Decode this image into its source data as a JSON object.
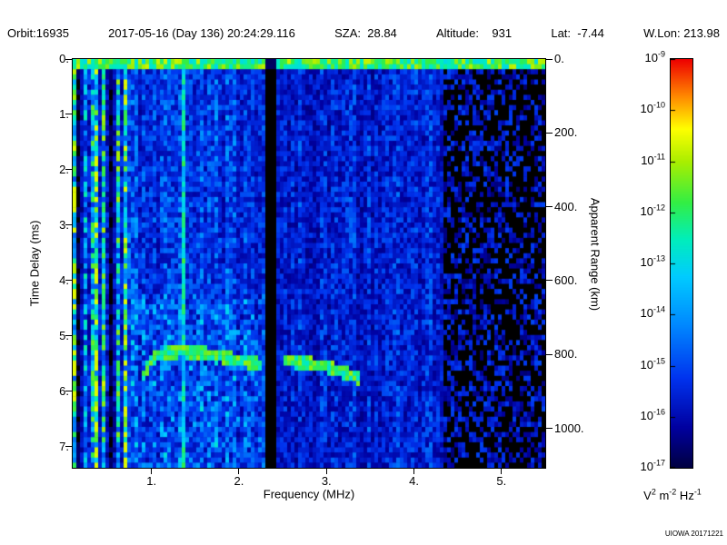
{
  "header": {
    "parts": [
      "Orbit:16935",
      "2017-05-16 (Day 136) 20:24:29.116",
      "SZA:  28.84",
      "Altitude:    931",
      "Lat:  -7.44",
      "W.Lon: 213.98"
    ]
  },
  "footer": {
    "watermark": "UIOWA 20171221"
  },
  "chart_data": {
    "type": "heatmap",
    "title": "",
    "xlabel": "Frequency (MHz)",
    "ylabel": "Time Delay (ms)",
    "y2label": "Apparent Range (km)",
    "xlim": [
      0.1,
      5.5
    ],
    "ylim_ms": [
      0,
      7.38
    ],
    "y_inverted": true,
    "xticks": {
      "values": [
        1,
        2,
        3,
        4,
        5
      ],
      "labels": [
        "1.",
        "2.",
        "3.",
        "4.",
        "5."
      ]
    },
    "yticks": {
      "values": [
        0,
        1,
        2,
        3,
        4,
        5,
        6,
        7
      ],
      "labels": [
        "0.",
        "1.",
        "2.",
        "3.",
        "4.",
        "5.",
        "6.",
        "7."
      ]
    },
    "y2ticks": {
      "values_km": [
        0,
        200,
        400,
        600,
        800,
        1000
      ],
      "labels": [
        "0.",
        "200.",
        "400.",
        "600.",
        "800.",
        "1000."
      ],
      "km_per_ms": 150
    },
    "colorbar": {
      "min": "1e-17",
      "max": "1e-9",
      "tick_exponents": [
        -9,
        -10,
        -11,
        -12,
        -13,
        -14,
        -15,
        -16,
        -17
      ],
      "unit_parts": [
        {
          "base": "V",
          "exp": "2"
        },
        {
          "base": "m",
          "exp": "-2"
        },
        {
          "base": "Hz",
          "exp": "-1"
        }
      ],
      "colormap_stops": [
        {
          "t": 0.0,
          "hex": "#000040"
        },
        {
          "t": 0.1,
          "hex": "#0000a0"
        },
        {
          "t": 0.22,
          "hex": "#0033ee"
        },
        {
          "t": 0.35,
          "hex": "#0088ff"
        },
        {
          "t": 0.47,
          "hex": "#00ccff"
        },
        {
          "t": 0.56,
          "hex": "#00eebb"
        },
        {
          "t": 0.65,
          "hex": "#33ee44"
        },
        {
          "t": 0.75,
          "hex": "#aaee00"
        },
        {
          "t": 0.83,
          "hex": "#ffff00"
        },
        {
          "t": 0.91,
          "hex": "#ff8800"
        },
        {
          "t": 1.0,
          "hex": "#ee0000"
        }
      ]
    },
    "spectrogram": {
      "seed": 16935,
      "grid": {
        "cols": 130,
        "rows": 80
      },
      "transmit_pulse": {
        "max_delay_ms": 0.15,
        "intensity": 0.5
      },
      "harmonic_band_max_mhz": 0.72,
      "bright_line_mhz": 1.35,
      "dark_band": {
        "center_mhz": 2.36,
        "halfwidth_mhz": 0.055
      },
      "quiet_above_mhz": 4.35,
      "noise_levels": {
        "mid": [
          0.11,
          0.33
        ],
        "right": [
          0.08,
          0.27
        ],
        "quiet": [
          0.05,
          0.25
        ],
        "quiet_black_fraction": 0.55
      },
      "echo_trace": {
        "halfwidth_ms": 0.11,
        "intensity": 0.62,
        "segments": [
          [
            [
              0.87,
              5.95
            ],
            [
              0.93,
              5.62
            ],
            [
              1.0,
              5.44
            ],
            [
              1.1,
              5.33
            ],
            [
              1.35,
              5.28
            ],
            [
              1.6,
              5.31
            ],
            [
              1.82,
              5.38
            ],
            [
              2.05,
              5.46
            ],
            [
              2.28,
              5.52
            ]
          ],
          [
            [
              2.5,
              5.46
            ],
            [
              2.75,
              5.48
            ],
            [
              3.0,
              5.56
            ],
            [
              3.2,
              5.66
            ],
            [
              3.37,
              5.78
            ]
          ]
        ]
      }
    }
  }
}
